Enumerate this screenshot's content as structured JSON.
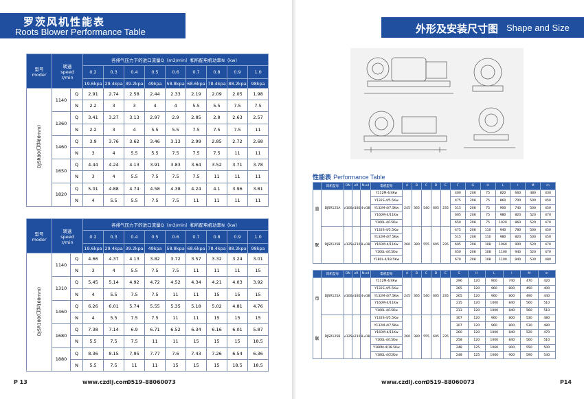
{
  "left_page": {
    "header": {
      "title_cn": "罗茨风机性能表",
      "title_en": "Roots Blower Performance Table"
    },
    "tables": [
      {
        "model_header": "型号",
        "model_header_en": "moder",
        "speed_header": "转速",
        "speed_header_en": "speed",
        "speed_unit": "r/min",
        "caption": "各排气压力下的进口流量Q（m3/min）和所配电机功率N（kw）",
        "pressures": [
          "0.2",
          "0.3",
          "0.4",
          "0.5",
          "0.6",
          "0.7",
          "0.8",
          "0.9",
          "1.0"
        ],
        "pressures_kpa": [
          "19.6kpa",
          "29.4kpa",
          "39.2kpa",
          "49kpa",
          "58.8kpa",
          "68.6kpa",
          "78.4kpa",
          "88.2kpa",
          "98kpa"
        ],
        "model_label": "DJSR80(口径80mm)",
        "rows": [
          {
            "speed": "1140",
            "q_label": "Q",
            "q": [
              "2.91",
              "2.74",
              "2.58",
              "2.44",
              "2.33",
              "2.19",
              "2.09",
              "2.05",
              "1.98"
            ],
            "n_label": "N",
            "n": [
              "2.2",
              "3",
              "3",
              "4",
              "4",
              "5.5",
              "5.5",
              "7.5",
              "7.5"
            ]
          },
          {
            "speed": "1360",
            "q_label": "Q",
            "q": [
              "3.41",
              "3.27",
              "3.13",
              "2.97",
              "2.9",
              "2.85",
              "2.8",
              "2.63",
              "2.57"
            ],
            "n_label": "N",
            "n": [
              "2.2",
              "3",
              "4",
              "5.5",
              "5.5",
              "7.5",
              "7.5",
              "7.5",
              "11"
            ]
          },
          {
            "speed": "1460",
            "q_label": "Q",
            "q": [
              "3.9",
              "3.76",
              "3.62",
              "3.46",
              "3.13",
              "2.99",
              "2.85",
              "2.72",
              "2.68"
            ],
            "n_label": "N",
            "n": [
              "3",
              "4",
              "5.5",
              "5.5",
              "7.5",
              "7.5",
              "7.5",
              "11",
              "11"
            ]
          },
          {
            "speed": "1650",
            "q_label": "Q",
            "q": [
              "4.44",
              "4.24",
              "4.13",
              "3.91",
              "3.83",
              "3.64",
              "3.52",
              "3.71",
              "3.78"
            ],
            "n_label": "N",
            "n": [
              "3",
              "4",
              "5.5",
              "7.5",
              "7.5",
              "7.5",
              "11",
              "11",
              "11"
            ]
          },
          {
            "speed": "1820",
            "q_label": "Q",
            "q": [
              "5.01",
              "4.88",
              "4.74",
              "4.58",
              "4.38",
              "4.24",
              "4.1",
              "3.96",
              "3.81"
            ],
            "n_label": "N",
            "n": [
              "4",
              "5.5",
              "5.5",
              "7.5",
              "7.5",
              "11",
              "11",
              "11",
              "11"
            ]
          }
        ]
      },
      {
        "model_header": "型号",
        "model_header_en": "moder",
        "speed_header": "转速",
        "speed_header_en": "speed",
        "speed_unit": "r/min",
        "caption": "各排气压力下的进口流量Q（m3/min）和所配电机功率N（kw）",
        "pressures": [
          "0.2",
          "0.3",
          "0.4",
          "0.5",
          "0.6",
          "0.7",
          "0.8",
          "0.9",
          "1.0"
        ],
        "pressures_kpa": [
          "19.6kpa",
          "29.4kpa",
          "39.2kpa",
          "49kpa",
          "58.8kpa",
          "68.6kpa",
          "78.4kpa",
          "88.2kpa",
          "98kpa"
        ],
        "model_label": "DJSR100(口径100mm)",
        "rows": [
          {
            "speed": "1140",
            "q_label": "Q",
            "q": [
              "4.66",
              "4.37",
              "4.13",
              "3.82",
              "3.72",
              "3.57",
              "3.32",
              "3.24",
              "3.01"
            ],
            "n_label": "N",
            "n": [
              "3",
              "4",
              "5.5",
              "7.5",
              "7.5",
              "11",
              "11",
              "11",
              "15"
            ]
          },
          {
            "speed": "1310",
            "q_label": "Q",
            "q": [
              "5.45",
              "5.14",
              "4.92",
              "4.72",
              "4.52",
              "4.34",
              "4.21",
              "4.03",
              "3.92"
            ],
            "n_label": "N",
            "n": [
              "4",
              "5.5",
              "7.5",
              "7.5",
              "11",
              "11",
              "15",
              "15",
              "15"
            ]
          },
          {
            "speed": "1460",
            "q_label": "Q",
            "q": [
              "6.26",
              "6.01",
              "5.74",
              "5.55",
              "5.35",
              "5.18",
              "5.02",
              "4.81",
              "4.76"
            ],
            "n_label": "N",
            "n": [
              "4",
              "5.5",
              "7.5",
              "7.5",
              "11",
              "11",
              "15",
              "15",
              "15"
            ]
          },
          {
            "speed": "1680",
            "q_label": "Q",
            "q": [
              "7.38",
              "7.14",
              "6.9",
              "6.71",
              "6.52",
              "6.34",
              "6.16",
              "6.01",
              "5.87"
            ],
            "n_label": "N",
            "n": [
              "5.5",
              "7.5",
              "7.5",
              "11",
              "11",
              "15",
              "15",
              "15",
              "18.5"
            ]
          },
          {
            "speed": "1880",
            "q_label": "Q",
            "q": [
              "8.36",
              "8.15",
              "7.95",
              "7.77",
              "7.6",
              "7.43",
              "7.26",
              "6.54",
              "6.36"
            ],
            "n_label": "N",
            "n": [
              "5.5",
              "7.5",
              "11",
              "11",
              "15",
              "15",
              "15",
              "18.5",
              "18.5"
            ]
          }
        ]
      }
    ],
    "footer": {
      "page": "P 13",
      "website": "www.czdlj.com",
      "phone": "0519–88060073"
    }
  },
  "right_page": {
    "header": {
      "title_cn": "外形及安装尺寸图",
      "title_en": "Shape and Size"
    },
    "section": {
      "title_cn": "性能表",
      "title_en": "Performance Table"
    },
    "tables": [
      {
        "group_label": [
          "直",
          "联"
        ],
        "columns": [
          "风机型号",
          "DN",
          "⌀R",
          "N-⌀d",
          "电机型号",
          "A",
          "B",
          "C",
          "D",
          "E",
          "F",
          "G",
          "H",
          "L",
          "I",
          "M",
          "m"
        ],
        "groups": [
          {
            "model": "DJSR125A",
            "dn": "⌀100",
            "r": "⌀180",
            "nd": "4-⌀18",
            "dims": [
              "245",
              "365",
              "540",
              "605",
              "235"
            ],
            "motors": [
              {
                "motor": "Y112M-4/4Kw",
                "values": [
                  "400",
                  "208",
                  "75",
                  "820",
                  "660",
                  "480",
                  "430"
                ]
              },
              {
                "motor": "Y132S-4/5.5Kw",
                "values": [
                  "475",
                  "208",
                  "75",
                  "860",
                  "700",
                  "500",
                  "450"
                ]
              },
              {
                "motor": "Y132M-4/7.5Kw",
                "values": [
                  "515",
                  "208",
                  "75",
                  "900",
                  "740",
                  "500",
                  "450"
                ]
              },
              {
                "motor": "Y160M-4/11Kw",
                "values": [
                  "605",
                  "208",
                  "75",
                  "980",
                  "820",
                  "520",
                  "470"
                ]
              },
              {
                "motor": "Y160L-4/15Kw",
                "values": [
                  "650",
                  "208",
                  "75",
                  "1020",
                  "860",
                  "520",
                  "470"
                ]
              }
            ]
          },
          {
            "model": "DJSR125B",
            "dn": "⌀125",
            "r": "⌀210",
            "nd": "8-⌀18",
            "dims": [
              "260",
              "380",
              "555",
              "695",
              "235"
            ],
            "motors": [
              {
                "motor": "Y132S-4/5.5Kw",
                "values": [
                  "475",
                  "208",
                  "110",
                  "940",
                  "780",
                  "500",
                  "450"
                ]
              },
              {
                "motor": "Y132M-4/7.5Kw",
                "values": [
                  "515",
                  "208",
                  "110",
                  "980",
                  "820",
                  "500",
                  "450"
                ]
              },
              {
                "motor": "Y160M-4/11Kw",
                "values": [
                  "605",
                  "208",
                  "108",
                  "1060",
                  "900",
                  "520",
                  "470"
                ]
              },
              {
                "motor": "Y160L-4/15Kw",
                "values": [
                  "650",
                  "208",
                  "108",
                  "1100",
                  "940",
                  "520",
                  "470"
                ]
              },
              {
                "motor": "Y180L-4/18.5Kw",
                "values": [
                  "670",
                  "208",
                  "108",
                  "1100",
                  "940",
                  "530",
                  "480"
                ]
              }
            ]
          }
        ]
      },
      {
        "group_label": [
          "带",
          "联"
        ],
        "columns": [
          "风机型号",
          "DN",
          "⌀R",
          "N-⌀d",
          "电机型号",
          "A",
          "B",
          "C",
          "D",
          "E",
          "G",
          "H",
          "L",
          "I",
          "M",
          "m"
        ],
        "groups": [
          {
            "model": "DJSR125A",
            "dn": "⌀100",
            "r": "⌀180",
            "nd": "4-⌀18",
            "dims": [
              "245",
              "365",
              "540",
              "605",
              "235"
            ],
            "motors": [
              {
                "motor": "Y112M-4/4Kw",
                "values": [
                  "296",
                  "120",
                  "900",
                  "740",
                  "470",
                  "420"
                ]
              },
              {
                "motor": "Y132S-4/5.5Kw",
                "values": [
                  "265",
                  "120",
                  "960",
                  "800",
                  "450",
                  "400"
                ]
              },
              {
                "motor": "Y132M-4/7.5Kw",
                "values": [
                  "265",
                  "120",
                  "960",
                  "800",
                  "490",
                  "440"
                ]
              },
              {
                "motor": "Y160M-4/11Kw",
                "values": [
                  "215",
                  "120",
                  "1000",
                  "840",
                  "560",
                  "510"
                ]
              },
              {
                "motor": "Y160L-4/15Kw",
                "values": [
                  "213",
                  "120",
                  "1000",
                  "840",
                  "560",
                  "510"
                ]
              }
            ]
          },
          {
            "model": "DJSR125B",
            "dn": "⌀125",
            "r": "⌀210",
            "nd": "8-⌀18",
            "dims": [
              "260",
              "380",
              "555",
              "695",
              "235"
            ],
            "motors": [
              {
                "motor": "Y132S-4/5.5Kw",
                "values": [
                  "307",
                  "120",
                  "960",
                  "800",
                  "530",
                  "480"
                ]
              },
              {
                "motor": "Y132M-4/7.5Kw",
                "values": [
                  "307",
                  "120",
                  "960",
                  "800",
                  "530",
                  "480"
                ]
              },
              {
                "motor": "Y160M-4/11Kw",
                "values": [
                  "260",
                  "120",
                  "1000",
                  "840",
                  "520",
                  "470"
                ]
              },
              {
                "motor": "Y160L-4/15Kw",
                "values": [
                  "258",
                  "120",
                  "1000",
                  "840",
                  "560",
                  "510"
                ]
              },
              {
                "motor": "Y180M-4/18.5Kw",
                "values": [
                  "248",
                  "125",
                  "1060",
                  "900",
                  "550",
                  "500"
                ]
              },
              {
                "motor": "Y180L-4/22Kw",
                "values": [
                  "248",
                  "125",
                  "1060",
                  "900",
                  "590",
                  "540"
                ]
              }
            ]
          }
        ]
      }
    ],
    "footer": {
      "website": "www.czdlj.com",
      "phone": "0519–88060073",
      "page": "P14"
    }
  }
}
